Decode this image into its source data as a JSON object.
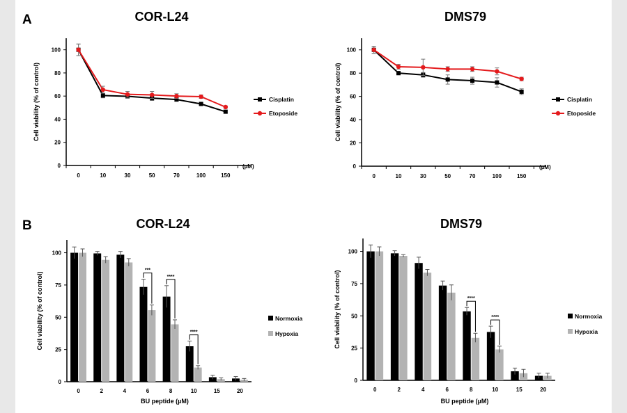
{
  "panels": [
    {
      "letter": "A"
    },
    {
      "letter": "B"
    }
  ],
  "chart_data": [
    {
      "id": "a1",
      "type": "line",
      "title": "COR-L24",
      "ylabel": "Cell viability (% of control)",
      "xlabel": "",
      "x_unit": "(µM)",
      "categories": [
        "0",
        "10",
        "30",
        "50",
        "70",
        "100",
        "150"
      ],
      "ylim": [
        0,
        110
      ],
      "yticks": [
        0,
        20,
        40,
        60,
        80,
        100
      ],
      "series": [
        {
          "name": "Cisplatin",
          "color": "#000000",
          "values": [
            100,
            60.5,
            59.8,
            58.2,
            57.0,
            53.2,
            46.5
          ],
          "errors": [
            5,
            2,
            1.5,
            2,
            1.5,
            1,
            1
          ]
        },
        {
          "name": "Etoposide",
          "color": "#e41a1c",
          "values": [
            100,
            65.5,
            61.5,
            61.0,
            60.0,
            59.5,
            50.5
          ],
          "errors": [
            5,
            3,
            2.5,
            3,
            2,
            1.5,
            1
          ]
        }
      ]
    },
    {
      "id": "a2",
      "type": "line",
      "title": "DMS79",
      "ylabel": "Cell viability (% of control)",
      "xlabel": "",
      "x_unit": "(µM)",
      "categories": [
        "0",
        "10",
        "30",
        "50",
        "70",
        "100",
        "150"
      ],
      "ylim": [
        0,
        110
      ],
      "yticks": [
        0,
        20,
        40,
        60,
        80,
        100
      ],
      "series": [
        {
          "name": "Cisplatin",
          "color": "#000000",
          "values": [
            100,
            80.0,
            78.5,
            74.5,
            73.5,
            72.0,
            64.0
          ],
          "errors": [
            3,
            1.5,
            2,
            4,
            3,
            4,
            2.5
          ]
        },
        {
          "name": "Etoposide",
          "color": "#e41a1c",
          "values": [
            100,
            85.5,
            85.0,
            83.5,
            83.5,
            81.5,
            75.0
          ],
          "errors": [
            3,
            2,
            7,
            2,
            2,
            3,
            1.5
          ]
        }
      ]
    },
    {
      "id": "b1",
      "type": "bar",
      "title": "COR-L24",
      "ylabel": "Cell viability (% of control)",
      "xlabel": "BU peptide (µM)",
      "categories": [
        "0",
        "2",
        "4",
        "6",
        "8",
        "10",
        "15",
        "20"
      ],
      "ylim": [
        0,
        110
      ],
      "yticks": [
        0,
        25,
        50,
        75,
        100
      ],
      "series": [
        {
          "name": "Normoxia",
          "color": "#000000",
          "values": [
            100,
            99.5,
            98.5,
            73.5,
            66.0,
            27.5,
            3.5,
            2.5
          ],
          "errors": [
            4.5,
            1.5,
            2.5,
            6,
            8.5,
            4,
            1.5,
            1.5
          ]
        },
        {
          "name": "Hypoxia",
          "color": "#b3b3b3",
          "values": [
            100,
            94.5,
            92.5,
            55.5,
            44.5,
            11.0,
            2.0,
            1.5
          ],
          "errors": [
            3,
            2.5,
            3,
            4,
            3.5,
            1.5,
            1,
            1
          ]
        }
      ],
      "significance": [
        {
          "category": "6",
          "label": "***"
        },
        {
          "category": "8",
          "label": "****"
        },
        {
          "category": "10",
          "label": "****"
        }
      ]
    },
    {
      "id": "b2",
      "type": "bar",
      "title": "DMS79",
      "ylabel": "Cell viability (% of control)",
      "xlabel": "BU peptide (µM)",
      "categories": [
        "0",
        "2",
        "4",
        "6",
        "8",
        "10",
        "15",
        "20"
      ],
      "ylim": [
        0,
        110
      ],
      "yticks": [
        0,
        25,
        50,
        75,
        100
      ],
      "series": [
        {
          "name": "Normoxia",
          "color": "#000000",
          "values": [
            100,
            98.5,
            91.0,
            73.5,
            53.5,
            37.5,
            7.0,
            3.5
          ],
          "errors": [
            5,
            2,
            4.5,
            3.5,
            3,
            4.5,
            2.5,
            2
          ]
        },
        {
          "name": "Hypoxia",
          "color": "#b3b3b3",
          "values": [
            100,
            96.5,
            83.5,
            68.0,
            33.0,
            24.0,
            5.5,
            3.5
          ],
          "errors": [
            3.5,
            1,
            2.5,
            6,
            3.5,
            2.5,
            3,
            2
          ]
        }
      ],
      "significance": [
        {
          "category": "8",
          "label": "****"
        },
        {
          "category": "10",
          "label": "****"
        }
      ]
    }
  ]
}
